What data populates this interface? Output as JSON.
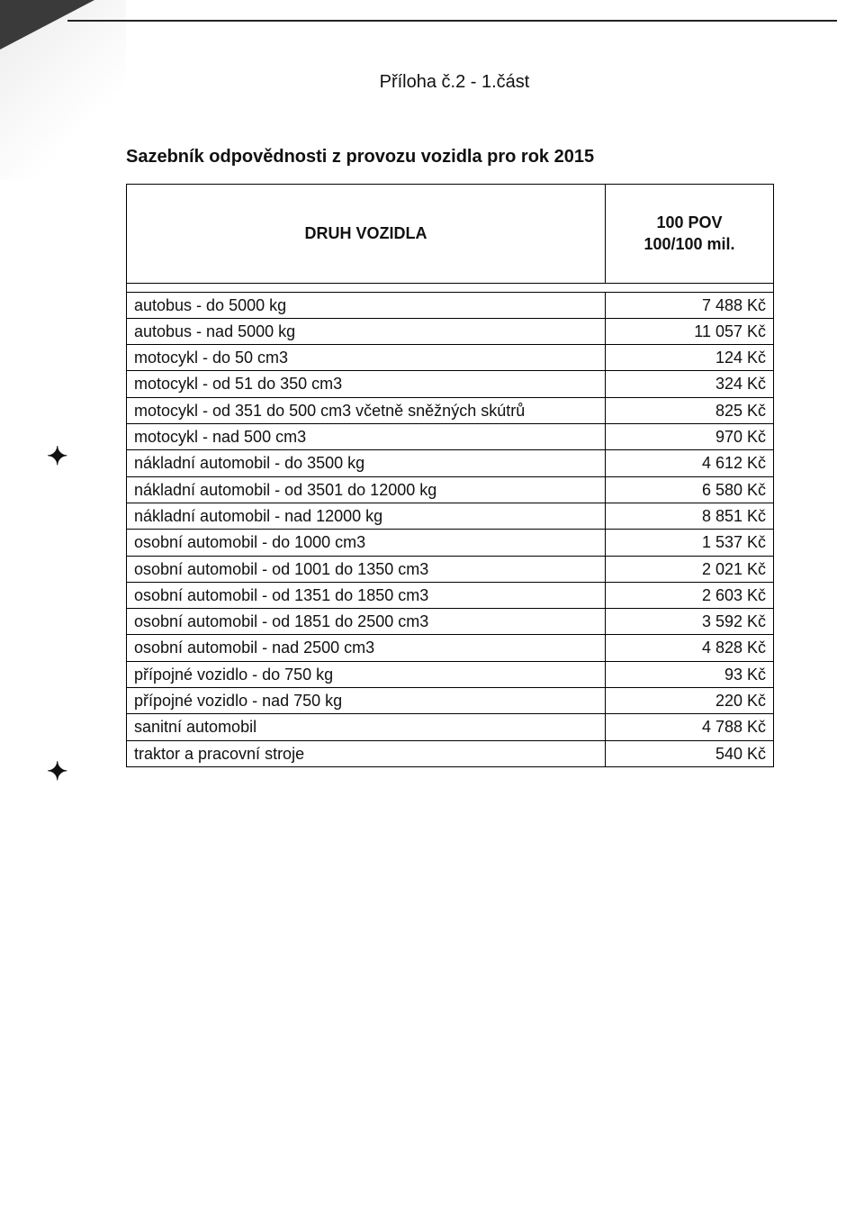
{
  "page": {
    "header_title": "Příloha č.2 - 1.část",
    "table_title": "Sazebník odpovědnosti z provozu vozidla pro rok 2015"
  },
  "table": {
    "columns": {
      "type_label": "DRUH VOZIDLA",
      "price_label_line1": "100 POV",
      "price_label_line2": "100/100 mil."
    },
    "rows": [
      {
        "type": "autobus - do 5000 kg",
        "price": "7 488 Kč"
      },
      {
        "type": "autobus - nad 5000 kg",
        "price": "11 057 Kč"
      },
      {
        "type": "motocykl - do 50 cm3",
        "price": "124 Kč"
      },
      {
        "type": "motocykl - od 51 do 350 cm3",
        "price": "324 Kč"
      },
      {
        "type": "motocykl - od 351 do 500 cm3 včetně sněžných skútrů",
        "price": "825 Kč"
      },
      {
        "type": "motocykl - nad 500 cm3",
        "price": "970 Kč"
      },
      {
        "type": "nákladní automobil - do 3500 kg",
        "price": "4 612 Kč"
      },
      {
        "type": "nákladní automobil - od 3501 do 12000 kg",
        "price": "6 580 Kč"
      },
      {
        "type": "nákladní automobil - nad 12000 kg",
        "price": "8 851 Kč"
      },
      {
        "type": "osobní automobil - do 1000 cm3",
        "price": "1 537 Kč"
      },
      {
        "type": "osobní automobil - od 1001 do 1350 cm3",
        "price": "2 021 Kč"
      },
      {
        "type": "osobní automobil - od 1351 do 1850 cm3",
        "price": "2 603 Kč"
      },
      {
        "type": "osobní automobil - od 1851 do 2500 cm3",
        "price": "3 592 Kč"
      },
      {
        "type": "osobní automobil - nad 2500 cm3",
        "price": "4 828 Kč"
      },
      {
        "type": "přípojné vozidlo - do 750 kg",
        "price": "93 Kč"
      },
      {
        "type": "přípojné vozidlo - nad 750 kg",
        "price": "220 Kč"
      },
      {
        "type": "sanitní automobil",
        "price": "4 788 Kč"
      },
      {
        "type": "traktor a pracovní stroje",
        "price": "540 Kč"
      }
    ]
  },
  "marks": {
    "m1": "✦",
    "m2": "✦"
  },
  "colors": {
    "page_bg": "#ffffff",
    "text": "#111111",
    "border": "#000000",
    "outer_bg": "#e8e8e8"
  }
}
